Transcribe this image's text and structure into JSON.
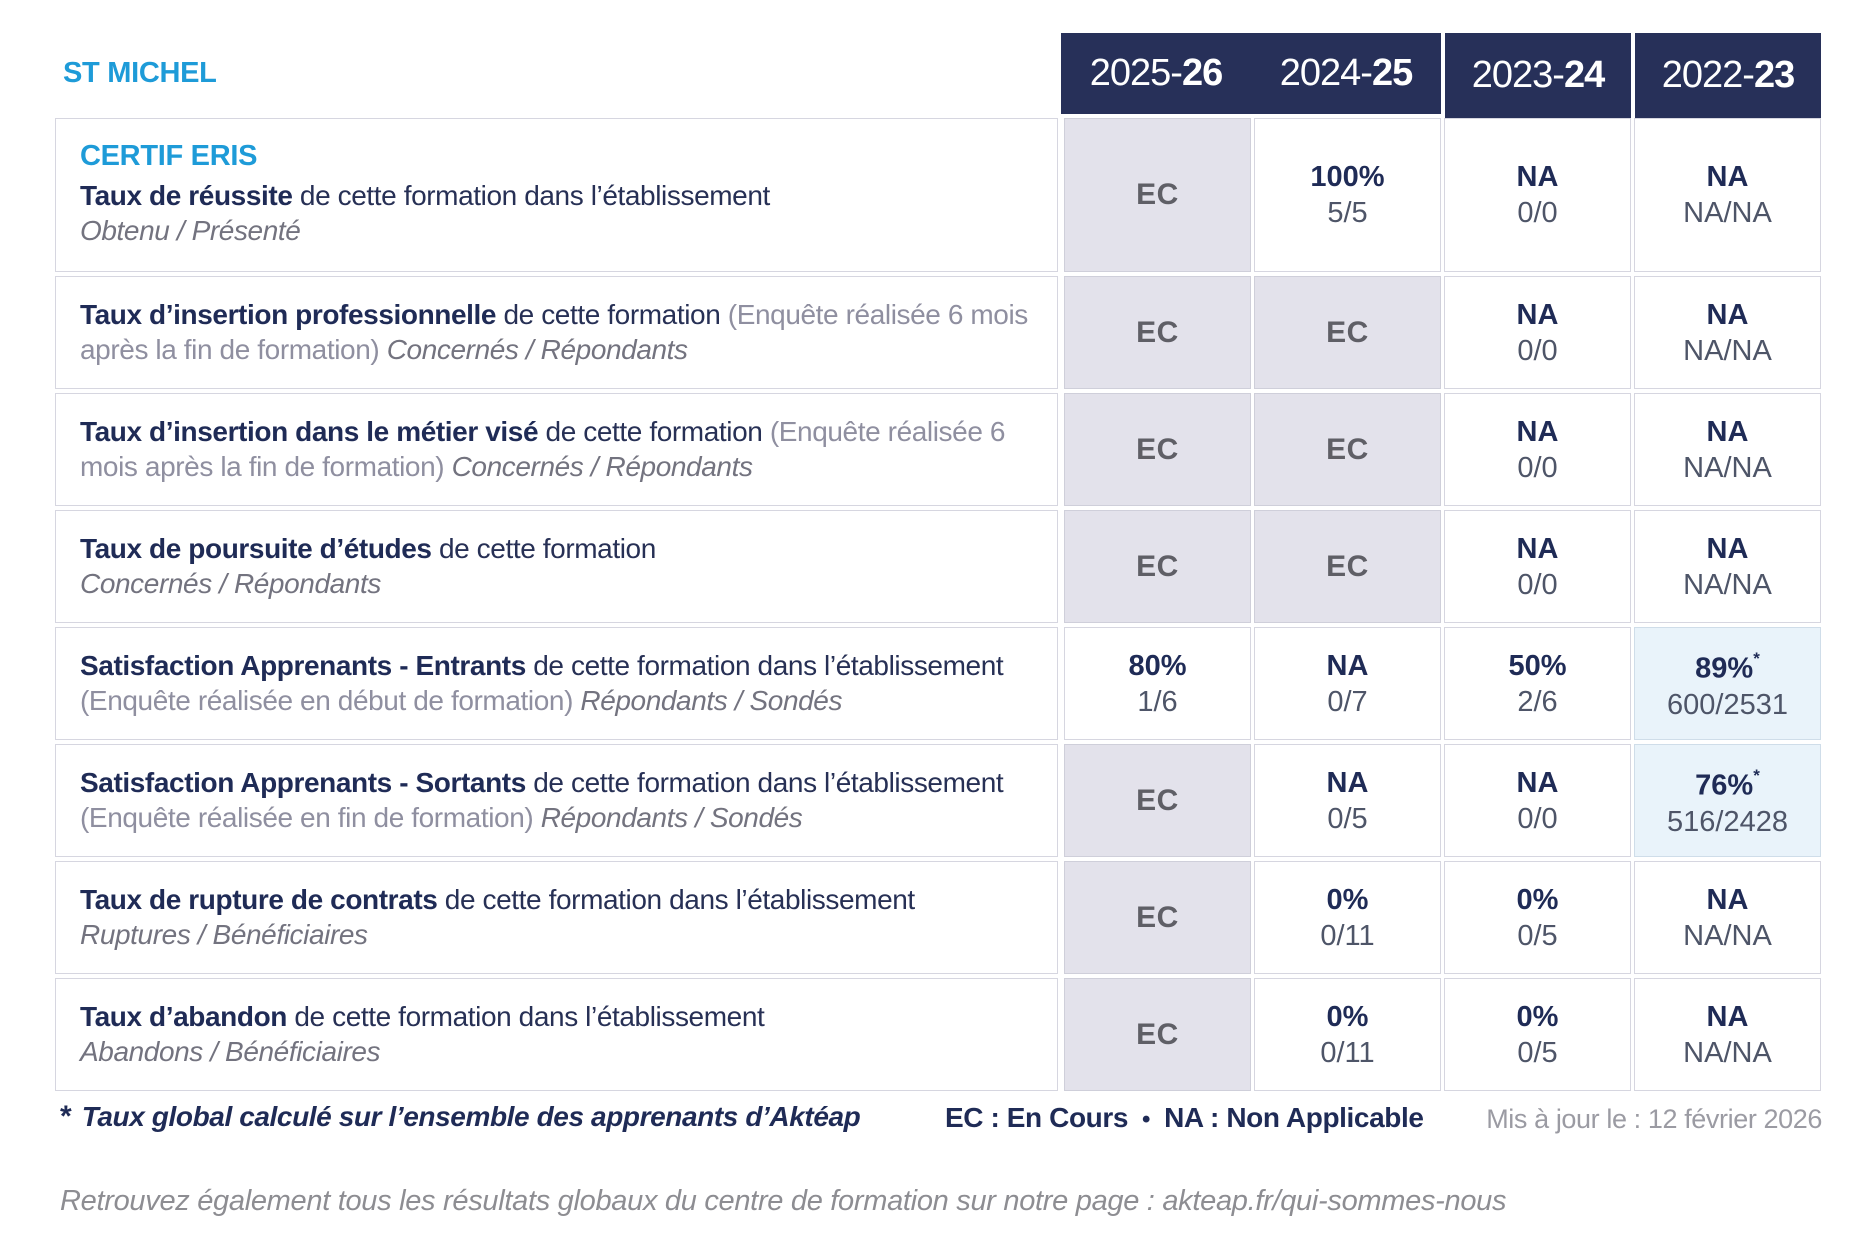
{
  "colors": {
    "header_bg": "#273059",
    "accent_blue": "#1e9bd8",
    "navy_text": "#1f2b56",
    "ec_cell_bg": "#e3e2eb",
    "highlight_cell_bg": "#e9f3fa",
    "gray_text": "#8f8fa0"
  },
  "header": {
    "org": "ST MICHEL",
    "years": [
      {
        "prefix": "2025-",
        "bold": "26"
      },
      {
        "prefix": "2024-",
        "bold": "25"
      },
      {
        "prefix": "2023-",
        "bold": "24"
      },
      {
        "prefix": "2022-",
        "bold": "23"
      }
    ]
  },
  "table": {
    "rows": [
      {
        "program": "CERTIF ERIS",
        "title": "Taux de réussite",
        "normal": " de cette formation dans l’établissement",
        "sub": "Obtenu / Présenté",
        "cells": [
          {
            "type": "ec",
            "value": "EC"
          },
          {
            "type": "val",
            "value": "100%",
            "sub": "5/5"
          },
          {
            "type": "val",
            "value": "NA",
            "sub": "0/0"
          },
          {
            "type": "val",
            "value": "NA",
            "sub": "NA/NA"
          }
        ]
      },
      {
        "title": "Taux d’insertion professionnelle",
        "normal": " de cette formation ",
        "note": "(Enquête réalisée 6 mois après la fin de formation) ",
        "sub": "Concernés / Répondants",
        "cells": [
          {
            "type": "ec",
            "value": "EC"
          },
          {
            "type": "ec",
            "value": "EC"
          },
          {
            "type": "val",
            "value": "NA",
            "sub": "0/0"
          },
          {
            "type": "val",
            "value": "NA",
            "sub": "NA/NA"
          }
        ]
      },
      {
        "title": "Taux d’insertion dans le métier visé",
        "normal": " de cette formation ",
        "note": "(Enquête réalisée 6 mois après la fin de formation) ",
        "sub": "Concernés / Répondants",
        "cells": [
          {
            "type": "ec",
            "value": "EC"
          },
          {
            "type": "ec",
            "value": "EC"
          },
          {
            "type": "val",
            "value": "NA",
            "sub": "0/0"
          },
          {
            "type": "val",
            "value": "NA",
            "sub": "NA/NA"
          }
        ]
      },
      {
        "title": "Taux de poursuite d’études",
        "normal": " de cette formation",
        "sub": "Concernés / Répondants",
        "cells": [
          {
            "type": "ec",
            "value": "EC"
          },
          {
            "type": "ec",
            "value": "EC"
          },
          {
            "type": "val",
            "value": "NA",
            "sub": "0/0"
          },
          {
            "type": "val",
            "value": "NA",
            "sub": "NA/NA"
          }
        ]
      },
      {
        "title": "Satisfaction Apprenants - Entrants",
        "normal": " de cette formation dans l’établissement ",
        "note": "(Enquête réalisée en début de formation) ",
        "sub": "Répondants / Sondés",
        "cells": [
          {
            "type": "val",
            "value": "80%",
            "sub": "1/6"
          },
          {
            "type": "val",
            "value": "NA",
            "sub": "0/7"
          },
          {
            "type": "val",
            "value": "50%",
            "sub": "2/6"
          },
          {
            "type": "val",
            "value": "89%",
            "star": "*",
            "sub": "600/2531",
            "highlight": true
          }
        ]
      },
      {
        "title": "Satisfaction Apprenants - Sortants",
        "normal": " de cette formation dans l’établissement ",
        "note": "(Enquête réalisée en fin de formation) ",
        "sub": "Répondants / Sondés",
        "cells": [
          {
            "type": "ec",
            "value": "EC"
          },
          {
            "type": "val",
            "value": "NA",
            "sub": "0/5"
          },
          {
            "type": "val",
            "value": "NA",
            "sub": "0/0"
          },
          {
            "type": "val",
            "value": "76%",
            "star": "*",
            "sub": "516/2428",
            "highlight": true
          }
        ]
      },
      {
        "title": "Taux de rupture de contrats",
        "normal": " de cette formation dans l’établissement",
        "sub": "Ruptures / Bénéficiaires",
        "cells": [
          {
            "type": "ec",
            "value": "EC"
          },
          {
            "type": "val",
            "value": "0%",
            "sub": "0/11"
          },
          {
            "type": "val",
            "value": "0%",
            "sub": "0/5"
          },
          {
            "type": "val",
            "value": "NA",
            "sub": "NA/NA"
          }
        ]
      },
      {
        "title": "Taux d’abandon",
        "normal": " de cette formation dans l’établissement",
        "sub": "Abandons / Bénéficiaires",
        "cells": [
          {
            "type": "ec",
            "value": "EC"
          },
          {
            "type": "val",
            "value": "0%",
            "sub": "0/11"
          },
          {
            "type": "val",
            "value": "0%",
            "sub": "0/5"
          },
          {
            "type": "val",
            "value": "NA",
            "sub": "NA/NA"
          }
        ]
      }
    ]
  },
  "footer": {
    "star": "*",
    "note": "Taux global calculé sur l’ensemble des apprenants d’Aktéap",
    "legend_ec": "EC : En Cours",
    "bullet": "•",
    "legend_na": "NA : Non Applicable",
    "updated": "Mis à jour le : 12 février 2026"
  },
  "bottom_line": "Retrouvez également tous les résultats globaux du centre de formation sur notre page : akteap.fr/qui-sommes-nous"
}
